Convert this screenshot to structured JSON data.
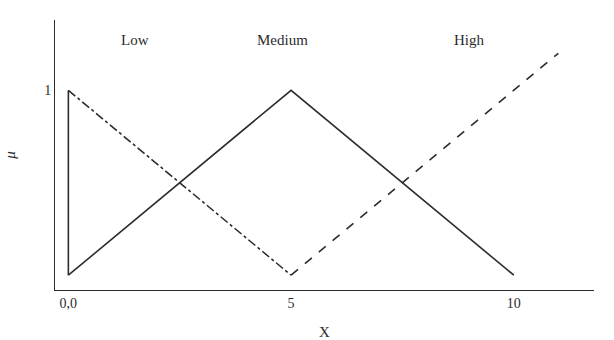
{
  "chart_data": {
    "type": "line",
    "title": "",
    "xlabel": "X",
    "ylabel": "μ",
    "xlim": [
      -0.3,
      11.8
    ],
    "ylim": [
      -0.08,
      1.38
    ],
    "xticks": [
      {
        "value": 0,
        "label": "0,0"
      },
      5,
      10
    ],
    "yticks": [
      1
    ],
    "grid": false,
    "series": [
      {
        "x": [
          0,
          0
        ],
        "values": [
          0,
          1
        ],
        "line_style": "solid",
        "color": "#2c2c2c"
      },
      {
        "x": [
          0,
          5
        ],
        "values": [
          1,
          0
        ],
        "line_style": "dashdot",
        "color": "#2c2c2c"
      },
      {
        "x": [
          0,
          5,
          10
        ],
        "values": [
          0,
          1,
          0
        ],
        "line_style": "solid",
        "color": "#2c2c2c"
      },
      {
        "x": [
          5,
          11
        ],
        "values": [
          0,
          1.2
        ],
        "line_style": "dashed",
        "color": "#2c2c2c"
      }
    ],
    "annotations": [
      {
        "text": "Low",
        "x": 1.5,
        "y": 1.22
      },
      {
        "text": "Medium",
        "x": 4.8,
        "y": 1.22
      },
      {
        "text": "High",
        "x": 9.0,
        "y": 1.22
      }
    ]
  }
}
